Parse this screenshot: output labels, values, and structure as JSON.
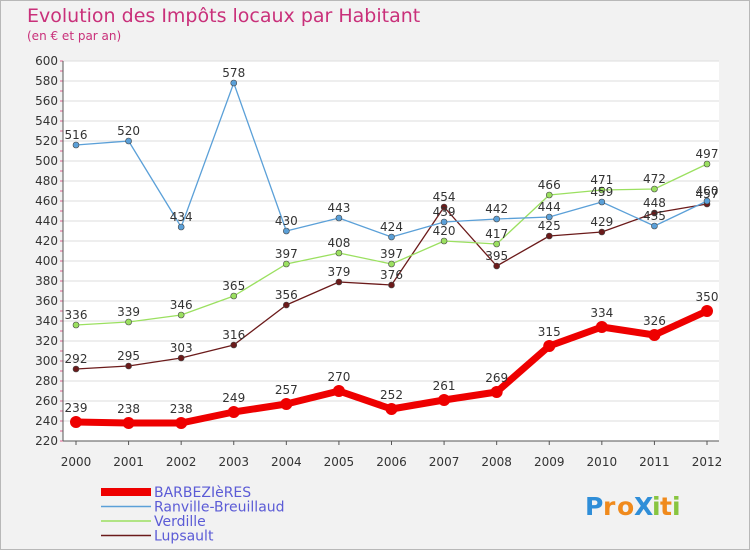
{
  "header": {
    "title": "Evolution des Impôts locaux par Habitant",
    "subtitle": "(en € et par an)"
  },
  "logo": {
    "text": "Proxiti"
  },
  "chart_data": {
    "type": "line",
    "title": "Evolution des Impôts locaux par Habitant",
    "subtitle": "(en € et par an)",
    "xlabel": "",
    "ylabel": "",
    "x": [
      "2000",
      "2001",
      "2002",
      "2003",
      "2004",
      "2005",
      "2006",
      "2007",
      "2008",
      "2009",
      "2010",
      "2011",
      "2012"
    ],
    "ylim": [
      220,
      600
    ],
    "yticks": [
      220,
      240,
      260,
      280,
      300,
      320,
      340,
      360,
      380,
      400,
      420,
      440,
      460,
      480,
      500,
      520,
      540,
      560,
      580,
      600
    ],
    "grid": "horizontal",
    "legend_position": "bottom-left",
    "series": [
      {
        "name": "BARBEZIèRES",
        "color": "#ee0000",
        "values": [
          239,
          238,
          238,
          249,
          257,
          270,
          252,
          261,
          269,
          315,
          334,
          326,
          350
        ]
      },
      {
        "name": "Ranville-Breuillaud",
        "color": "#5ba0d8",
        "values": [
          516,
          520,
          434,
          578,
          430,
          443,
          424,
          439,
          442,
          444,
          459,
          435,
          460
        ]
      },
      {
        "name": "Verdille",
        "color": "#9be060",
        "values": [
          336,
          339,
          346,
          365,
          397,
          408,
          397,
          420,
          417,
          466,
          471,
          472,
          497
        ]
      },
      {
        "name": "Lupsault",
        "color": "#6b1a1a",
        "values": [
          292,
          295,
          303,
          316,
          356,
          379,
          376,
          454,
          395,
          425,
          429,
          448,
          457
        ]
      }
    ]
  }
}
